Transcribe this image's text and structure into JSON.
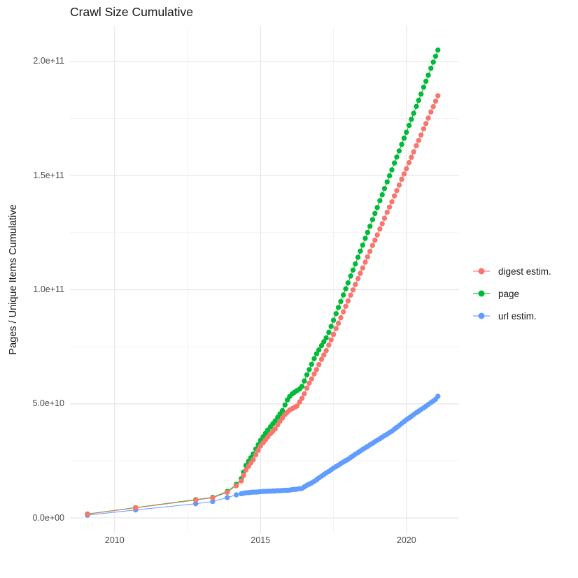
{
  "title": "Crawl Size Cumulative",
  "y_axis": {
    "label": "Pages / Unique Items Cumulative",
    "tick_labels": [
      "0.0e+00",
      "5.0e+10",
      "1.0e+11",
      "1.5e+11",
      "2.0e+11"
    ],
    "tick_values_e9": [
      0,
      50,
      100,
      150,
      200
    ],
    "minor_values_e9": [
      25,
      75,
      125,
      175
    ]
  },
  "x_axis": {
    "tick_labels": [
      "2010",
      "2015",
      "2020"
    ],
    "tick_values": [
      2010,
      2015,
      2020
    ],
    "minor_values": [
      2012.5,
      2017.5
    ]
  },
  "legend": {
    "items": [
      {
        "label": "digest estim.",
        "color": "#F8766D"
      },
      {
        "label": "page",
        "color": "#00BA38"
      },
      {
        "label": "url estim.",
        "color": "#619CFF"
      }
    ]
  },
  "chart_data": {
    "type": "line",
    "title": "Crawl Size Cumulative",
    "xlabel": "",
    "ylabel": "Pages / Unique Items Cumulative",
    "units": "values are billions (1e9) of pages / unique items, cumulative",
    "xlim": [
      2008.47,
      2021.8
    ],
    "ylim_e9": [
      -7,
      215
    ],
    "grid": true,
    "legend_position": "right",
    "x_years": [
      2009.07,
      2010.72,
      2012.78,
      2013.36,
      2013.86,
      2014.17,
      2014.34,
      2014.42,
      2014.5,
      2014.59,
      2014.67,
      2014.75,
      2014.84,
      2014.92,
      2015.0,
      2015.09,
      2015.17,
      2015.25,
      2015.34,
      2015.42,
      2015.5,
      2015.59,
      2015.67,
      2015.75,
      2015.84,
      2015.92,
      2016.0,
      2016.09,
      2016.17,
      2016.25,
      2016.34,
      2016.42,
      2016.5,
      2016.59,
      2016.67,
      2016.75,
      2016.84,
      2016.92,
      2017.0,
      2017.09,
      2017.17,
      2017.25,
      2017.34,
      2017.42,
      2017.5,
      2017.59,
      2017.67,
      2017.75,
      2017.84,
      2017.92,
      2018.0,
      2018.09,
      2018.17,
      2018.25,
      2018.34,
      2018.42,
      2018.5,
      2018.59,
      2018.67,
      2018.75,
      2018.84,
      2018.92,
      2019.0,
      2019.09,
      2019.17,
      2019.25,
      2019.34,
      2019.42,
      2019.5,
      2019.59,
      2019.67,
      2019.75,
      2019.84,
      2019.92,
      2020.0,
      2020.09,
      2020.17,
      2020.25,
      2020.34,
      2020.42,
      2020.5,
      2020.59,
      2020.67,
      2020.75,
      2020.84,
      2020.92,
      2021.0,
      2021.08
    ],
    "series": [
      {
        "name": "digest estim.",
        "color": "#F8766D",
        "values_e9": [
          1.6,
          4.4,
          7.8,
          8.8,
          11.2,
          14.1,
          16.2,
          18.6,
          21.0,
          22.6,
          24.1,
          25.5,
          27.7,
          29.6,
          31.5,
          32.9,
          34.2,
          35.5,
          36.8,
          37.9,
          39.0,
          40.8,
          42.4,
          43.8,
          45.3,
          46.3,
          47.3,
          47.9,
          48.5,
          49.0,
          50.8,
          52.4,
          54.4,
          56.9,
          59.0,
          60.9,
          63.1,
          65.0,
          67.2,
          69.5,
          71.4,
          73.3,
          75.7,
          78.0,
          80.4,
          83.0,
          85.3,
          87.7,
          90.3,
          92.7,
          95.0,
          97.6,
          99.9,
          102.3,
          104.9,
          107.2,
          109.5,
          112.1,
          114.4,
          116.8,
          119.4,
          121.7,
          124.0,
          126.6,
          128.9,
          131.3,
          133.9,
          136.2,
          138.5,
          141.1,
          143.4,
          145.8,
          148.4,
          150.7,
          153.0,
          155.7,
          158.0,
          160.4,
          163.1,
          165.4,
          167.8,
          170.5,
          172.8,
          175.2,
          177.9,
          180.2,
          182.6,
          185.0
        ]
      },
      {
        "name": "page",
        "color": "#00BA38",
        "values_e9": [
          1.7,
          4.5,
          8.0,
          9.0,
          11.6,
          14.7,
          17.2,
          20.1,
          23.0,
          24.8,
          26.4,
          28.0,
          30.2,
          32.1,
          34.0,
          35.6,
          37.1,
          38.5,
          39.9,
          41.2,
          42.5,
          44.1,
          45.6,
          47.0,
          49.5,
          51.7,
          53.2,
          54.4,
          55.1,
          55.8,
          56.5,
          57.6,
          60.0,
          62.7,
          65.0,
          67.3,
          69.8,
          71.9,
          73.6,
          75.5,
          77.2,
          78.9,
          81.3,
          83.9,
          86.6,
          89.5,
          92.2,
          94.8,
          97.7,
          100.4,
          103.0,
          106.0,
          108.6,
          111.3,
          114.2,
          116.9,
          119.5,
          122.5,
          125.1,
          127.8,
          130.7,
          133.4,
          136.0,
          139.0,
          141.6,
          144.3,
          147.2,
          149.9,
          152.5,
          155.5,
          158.1,
          160.8,
          163.7,
          166.4,
          169.0,
          172.0,
          174.7,
          177.3,
          180.3,
          183.0,
          185.7,
          188.7,
          191.3,
          194.0,
          197.0,
          199.7,
          202.3,
          205.0
        ]
      },
      {
        "name": "url estim.",
        "color": "#619CFF",
        "values_e9": [
          1.2,
          3.5,
          6.2,
          7.2,
          8.9,
          10.1,
          10.6,
          10.8,
          11.0,
          11.1,
          11.2,
          11.3,
          11.3,
          11.4,
          11.5,
          11.6,
          11.6,
          11.7,
          11.7,
          11.8,
          11.8,
          11.9,
          11.9,
          12.0,
          12.1,
          12.1,
          12.2,
          12.4,
          12.5,
          12.6,
          12.8,
          12.9,
          13.6,
          14.3,
          14.8,
          15.3,
          16.0,
          16.7,
          17.5,
          18.3,
          19.0,
          19.7,
          20.4,
          21.1,
          21.8,
          22.5,
          23.1,
          23.8,
          24.5,
          25.1,
          25.7,
          26.5,
          27.2,
          27.9,
          28.6,
          29.3,
          30.0,
          30.7,
          31.3,
          32.0,
          32.7,
          33.4,
          34.0,
          34.7,
          35.4,
          36.0,
          36.7,
          37.4,
          38.0,
          38.9,
          39.7,
          40.5,
          41.4,
          42.2,
          43.0,
          43.8,
          44.5,
          45.3,
          46.1,
          46.8,
          47.5,
          48.2,
          48.9,
          49.7,
          50.5,
          51.2,
          52.0,
          53.3
        ]
      }
    ]
  }
}
